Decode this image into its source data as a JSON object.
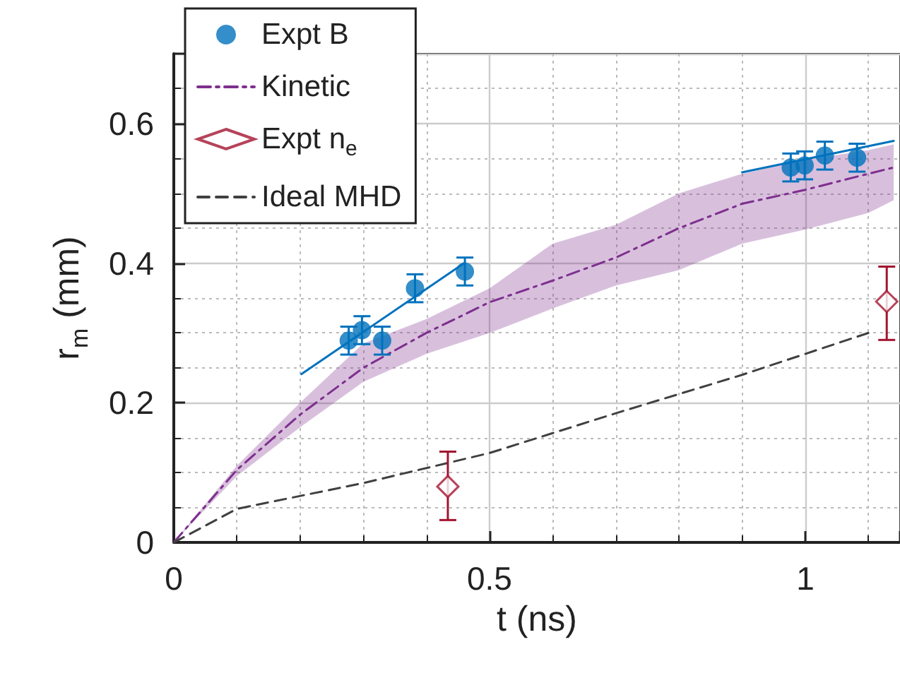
{
  "chart_data": {
    "type": "scatter",
    "xlabel": "t (ns)",
    "ylabel": "r$_{m}$ (mm)",
    "xlim": [
      0,
      1.15
    ],
    "ylim": [
      0,
      0.7
    ],
    "xticks": [
      0,
      0.5,
      1
    ],
    "yticks": [
      0,
      0.2,
      0.4,
      0.6
    ],
    "grid": true,
    "legend": "top left",
    "series": [
      {
        "name": "Expt B",
        "color": "#0072bd",
        "marker": "circle",
        "x": [
          0.277,
          0.298,
          0.33,
          0.382,
          0.461,
          0.977,
          0.999,
          1.031,
          1.082
        ],
        "values": [
          0.289,
          0.304,
          0.289,
          0.364,
          0.388,
          0.537,
          0.54,
          0.554,
          0.551
        ],
        "errors": [
          0.02,
          0.02,
          0.02,
          0.02,
          0.02,
          0.02,
          0.02,
          0.02,
          0.02
        ]
      },
      {
        "name": "Kinetic",
        "type": "line",
        "color": "#7e2f8e",
        "line_style": "dashdot",
        "marker": "none",
        "x": [
          0,
          0.1,
          0.2,
          0.3,
          0.4,
          0.5,
          0.6,
          0.7,
          0.8,
          0.9,
          1.0,
          1.1,
          1.14
        ],
        "values": [
          0,
          0.104,
          0.183,
          0.25,
          0.3,
          0.344,
          0.375,
          0.408,
          0.45,
          0.485,
          0.505,
          0.528,
          0.537
        ],
        "lower": [
          0,
          0.095,
          0.165,
          0.23,
          0.27,
          0.3,
          0.335,
          0.368,
          0.39,
          0.428,
          0.448,
          0.472,
          0.49
        ],
        "upper": [
          0,
          0.11,
          0.2,
          0.285,
          0.32,
          0.364,
          0.428,
          0.455,
          0.5,
          0.528,
          0.548,
          0.562,
          0.57
        ]
      },
      {
        "name": "Expt n$_{e}$",
        "color": "#a2142f",
        "marker": "diamond",
        "x": [
          0.434,
          1.129
        ],
        "values": [
          0.08,
          0.345
        ],
        "errors": [
          [
            0.032,
            0.13
          ],
          [
            0.29,
            0.395
          ]
        ]
      },
      {
        "name": "Ideal MHD",
        "type": "line",
        "color": "#404040",
        "line_style": "dashed",
        "marker": "none",
        "x": [
          0,
          0.1,
          0.3,
          0.5,
          0.7,
          0.9,
          1.1
        ],
        "values": [
          0,
          0.048,
          0.085,
          0.128,
          0.185,
          0.24,
          0.3
        ]
      },
      {
        "type": "line",
        "color": "#0072bd",
        "line_style": "solid",
        "marker": "none",
        "x": [
          0.202,
          0.46,
          0.7,
          0.9,
          1.14
        ],
        "values": [
          0.241,
          0.4,
          null,
          0.53,
          0.575
        ]
      }
    ]
  }
}
